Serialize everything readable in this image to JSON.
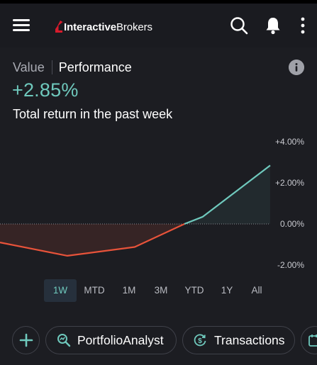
{
  "app": {
    "brand_prefix": "Interactive",
    "brand_suffix": "Brokers"
  },
  "tabs": {
    "value": "Value",
    "performance": "Performance"
  },
  "summary": {
    "return_value": "+2.85%",
    "return_label": "Total return in the past week"
  },
  "chart_data": {
    "type": "line",
    "x": [
      0,
      1,
      2,
      3,
      4,
      5
    ],
    "values": [
      -0.9,
      -1.55,
      -1.12,
      0.0,
      0.35,
      2.85
    ],
    "y_ticks": [
      "+4.00%",
      "+2.00%",
      "0.00%",
      "-2.00%"
    ],
    "ylim": [
      -2,
      4
    ],
    "baseline": 0,
    "colors": {
      "negative": "#e8533a",
      "positive": "#6fc9bd"
    }
  },
  "ranges": {
    "options": [
      "1W",
      "MTD",
      "1M",
      "3M",
      "YTD",
      "1Y",
      "All"
    ],
    "selected": "1W"
  },
  "actions": {
    "portfolio_analyst": "PortfolioAnalyst",
    "transactions": "Transactions"
  },
  "colors": {
    "accent": "#6fc9bd",
    "negative": "#e8533a",
    "brand": "#d81b2c",
    "background": "#1c1d22"
  }
}
